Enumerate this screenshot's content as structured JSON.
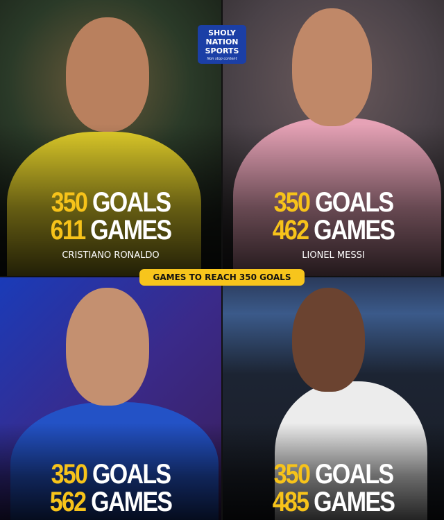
{
  "logo": {
    "lines": [
      "SHOLY",
      "NATION",
      "SPORTS"
    ],
    "tagline": "Non stop content"
  },
  "banner": "GAMES TO REACH 350 GOALS",
  "players": [
    {
      "name": "CRISTIANO RONALDO",
      "goals": "350",
      "goals_label": "GOALS",
      "games": "611",
      "games_label": "GAMES",
      "shirt_color": "#e8d22a"
    },
    {
      "name": "LIONEL MESSI",
      "goals": "350",
      "goals_label": "GOALS",
      "games": "462",
      "games_label": "GAMES",
      "shirt_color": "#e9a3b8"
    },
    {
      "goals": "350",
      "goals_label": "GOALS",
      "games": "562",
      "games_label": "GAMES",
      "shirt_color": "#1f4fc4"
    },
    {
      "goals": "350",
      "goals_label": "GOALS",
      "games": "485",
      "games_label": "GAMES",
      "shirt_color": "#eeeeee"
    }
  ]
}
